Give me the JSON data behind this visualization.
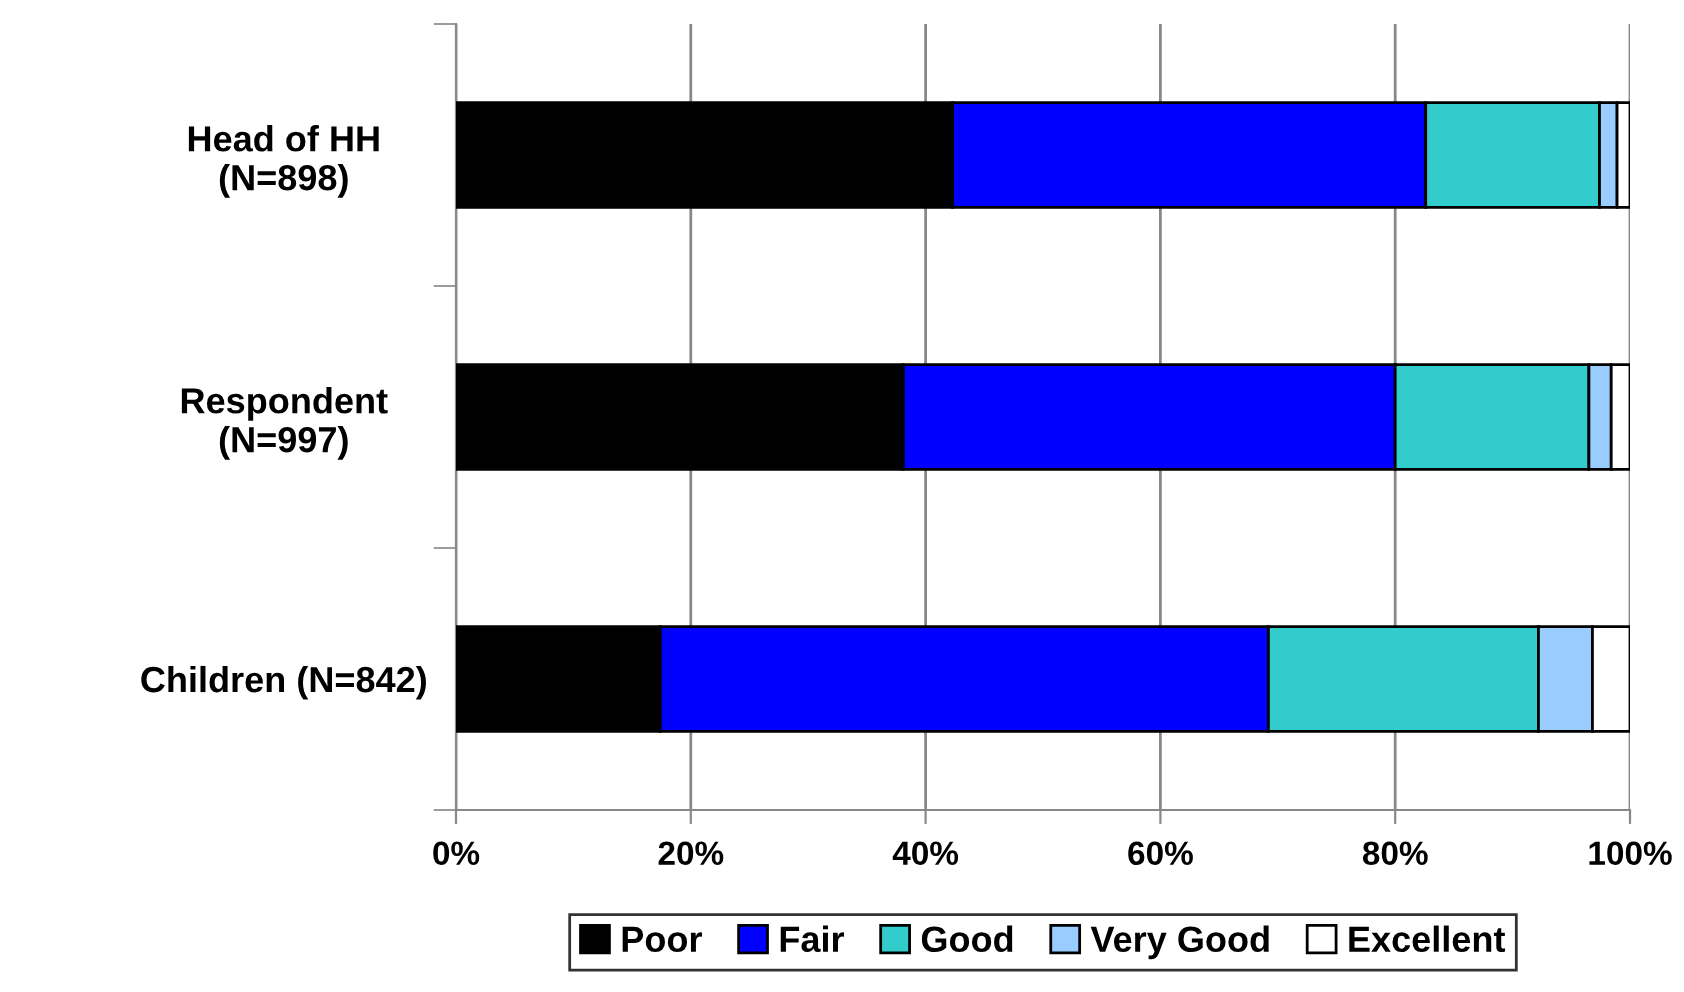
{
  "chart_data": {
    "type": "bar",
    "orientation": "horizontal",
    "stacked": true,
    "categories": [
      "Head of HH\n(N=898)",
      "Respondent\n(N=997)",
      "Children (N=842)"
    ],
    "series": [
      {
        "name": "Poor",
        "color": "#000000",
        "values": [
          42.3,
          38.1,
          17.4
        ]
      },
      {
        "name": "Fair",
        "color": "#0000ff",
        "values": [
          40.3,
          41.9,
          51.8
        ]
      },
      {
        "name": "Good",
        "color": "#33cccc",
        "values": [
          14.8,
          16.5,
          23.0
        ]
      },
      {
        "name": "Very Good",
        "color": "#99ccff",
        "values": [
          1.5,
          1.9,
          4.6
        ]
      },
      {
        "name": "Excellent",
        "color": "#ffffff",
        "values": [
          1.1,
          1.6,
          3.2
        ]
      }
    ],
    "xlim": [
      0,
      100
    ],
    "xticks": [
      {
        "value": 0,
        "label": "0%"
      },
      {
        "value": 20,
        "label": "20%"
      },
      {
        "value": 40,
        "label": "40%"
      },
      {
        "value": 60,
        "label": "60%"
      },
      {
        "value": 80,
        "label": "80%"
      },
      {
        "value": 100,
        "label": "100%"
      }
    ],
    "grid": "x",
    "legend": "bottom"
  }
}
